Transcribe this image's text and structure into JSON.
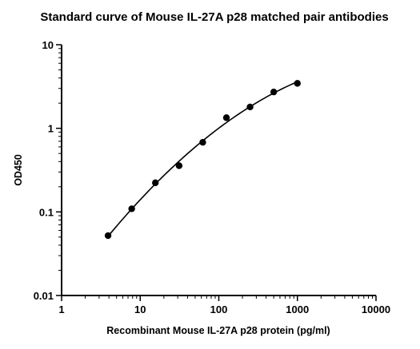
{
  "chart_data": {
    "type": "scatter",
    "title": "Standard curve of Mouse IL-27A p28 matched pair antibodies",
    "xlabel": "Recombinant Mouse IL-27A p28 protein (pg/ml)",
    "ylabel": "OD450",
    "x_scale": "log",
    "y_scale": "log",
    "xlim": [
      1,
      10000
    ],
    "ylim": [
      0.01,
      10
    ],
    "x_ticks": [
      1,
      10,
      100,
      1000,
      10000
    ],
    "x_tick_labels": [
      "1",
      "10",
      "100",
      "1000",
      "10000"
    ],
    "y_ticks": [
      0.01,
      0.1,
      1,
      10
    ],
    "y_tick_labels": [
      "0.01",
      "0.1",
      "1",
      "10"
    ],
    "grid": false,
    "legend": "none",
    "series": [
      {
        "x": [
          3.9,
          7.8,
          15.6,
          31.25,
          62.5,
          125,
          250,
          500,
          1000
        ],
        "y": [
          0.052,
          0.109,
          0.223,
          0.357,
          0.68,
          1.34,
          1.8,
          2.72,
          3.45
        ],
        "fit": "four-parameter logistic curve"
      }
    ],
    "colors": {
      "marks": "#000000",
      "background": "#ffffff"
    }
  }
}
